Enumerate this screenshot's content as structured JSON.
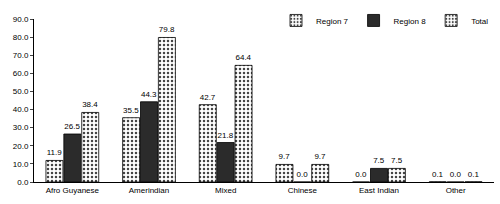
{
  "chart_data": {
    "type": "bar",
    "categories": [
      "Afro Guyanese",
      "Amerindian",
      "Mixed",
      "Chinese",
      "East Indian",
      "Other"
    ],
    "series": [
      {
        "name": "Region 7",
        "color": "#ffffff",
        "marker": "dots",
        "values": [
          11.9,
          35.5,
          42.7,
          9.7,
          0.0,
          0.1
        ],
        "value_labels": [
          "11.9",
          "35.5",
          "42.7",
          "9.7",
          "0.0",
          "0.1"
        ]
      },
      {
        "name": "Region 8",
        "color": "#2b2b2b",
        "marker": "solid",
        "values": [
          26.5,
          44.3,
          21.8,
          0.0,
          7.5,
          0.0
        ],
        "value_labels": [
          "26.5",
          "44.3",
          "21.8",
          "0.0",
          "7.5",
          "0.0"
        ]
      },
      {
        "name": "Total",
        "color": "#ffffff",
        "marker": "dots",
        "values": [
          38.4,
          79.8,
          64.4,
          9.7,
          7.5,
          0.1
        ],
        "value_labels": [
          "38.4",
          "79.8",
          "64.4",
          "9.7",
          "7.5",
          "0.1"
        ]
      }
    ],
    "ylim": [
      0,
      90
    ],
    "yticks": [
      {
        "value": 0,
        "label": "0.0"
      },
      {
        "value": 10,
        "label": "10.0"
      },
      {
        "value": 20,
        "label": "20.0"
      },
      {
        "value": 30,
        "label": "30.0"
      },
      {
        "value": 40,
        "label": "40.0"
      },
      {
        "value": 50,
        "label": "50.0"
      },
      {
        "value": 60,
        "label": "60.0"
      },
      {
        "value": 70,
        "label": "70.0"
      },
      {
        "value": 80,
        "label": "80.0"
      },
      {
        "value": 90,
        "label": "90.0"
      }
    ],
    "grid": false,
    "legend": "top-right",
    "data_labels": true
  }
}
